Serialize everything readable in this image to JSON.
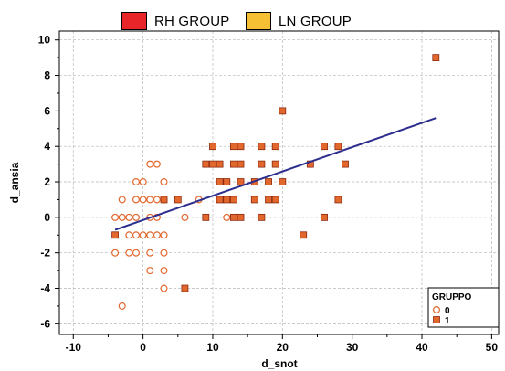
{
  "top_legend": {
    "items": [
      {
        "label": "RH GROUP",
        "color": "#e8262a"
      },
      {
        "label": "LN GROUP",
        "color": "#f5c033"
      }
    ]
  },
  "chart_data": {
    "type": "scatter",
    "title": "",
    "xlabel": "d_snot",
    "ylabel": "d_ansia",
    "xlim": [
      -12,
      51
    ],
    "ylim": [
      -6.6,
      10.5
    ],
    "xticks": [
      -10,
      0,
      10,
      20,
      30,
      40,
      50
    ],
    "yticks": [
      -6,
      -4,
      -2,
      0,
      2,
      4,
      6,
      8,
      10
    ],
    "grid": true,
    "legend": {
      "title": "GRUPPO",
      "placement": "bottom-right",
      "entries": [
        {
          "label": "0",
          "marker": "circle-open",
          "color": "#e2672d"
        },
        {
          "label": "1",
          "marker": "square-filled",
          "color": "#e2672d"
        }
      ]
    },
    "series": [
      {
        "name": "0",
        "marker": "circle-open",
        "color": "#e2672d",
        "points": [
          [
            -3,
            -5
          ],
          [
            -4,
            -2
          ],
          [
            -2,
            -2
          ],
          [
            -1,
            -2
          ],
          [
            1,
            -2
          ],
          [
            3,
            -2
          ],
          [
            1,
            -3
          ],
          [
            3,
            -3
          ],
          [
            3,
            -4
          ],
          [
            -4,
            0
          ],
          [
            -3,
            0
          ],
          [
            -2,
            0
          ],
          [
            -1,
            0
          ],
          [
            1,
            0
          ],
          [
            2,
            0
          ],
          [
            6,
            0
          ],
          [
            12,
            0
          ],
          [
            -2,
            -1
          ],
          [
            -1,
            -1
          ],
          [
            0,
            -1
          ],
          [
            1,
            -1
          ],
          [
            2,
            -1
          ],
          [
            3,
            -1
          ],
          [
            -3,
            1
          ],
          [
            -1,
            1
          ],
          [
            0,
            1
          ],
          [
            1,
            1
          ],
          [
            2,
            1
          ],
          [
            3,
            1
          ],
          [
            8,
            1
          ],
          [
            -1,
            2
          ],
          [
            0,
            2
          ],
          [
            3,
            2
          ],
          [
            1,
            3
          ],
          [
            2,
            3
          ]
        ]
      },
      {
        "name": "1",
        "marker": "square-filled",
        "color": "#e2672d",
        "points": [
          [
            42,
            9
          ],
          [
            20,
            6
          ],
          [
            10,
            4
          ],
          [
            13,
            4
          ],
          [
            14,
            4
          ],
          [
            17,
            4
          ],
          [
            19,
            4
          ],
          [
            26,
            4
          ],
          [
            28,
            4
          ],
          [
            9,
            3
          ],
          [
            10,
            3
          ],
          [
            11,
            3
          ],
          [
            13,
            3
          ],
          [
            14,
            3
          ],
          [
            17,
            3
          ],
          [
            19,
            3
          ],
          [
            24,
            3
          ],
          [
            29,
            3
          ],
          [
            11,
            2
          ],
          [
            12,
            2
          ],
          [
            14,
            2
          ],
          [
            16,
            2
          ],
          [
            18,
            2
          ],
          [
            20,
            2
          ],
          [
            3,
            1
          ],
          [
            5,
            1
          ],
          [
            11,
            1
          ],
          [
            12,
            1
          ],
          [
            13,
            1
          ],
          [
            16,
            1
          ],
          [
            18,
            1
          ],
          [
            19,
            1
          ],
          [
            28,
            1
          ],
          [
            9,
            0
          ],
          [
            13,
            0
          ],
          [
            14,
            0
          ],
          [
            17,
            0
          ],
          [
            26,
            0
          ],
          [
            -4,
            -1
          ],
          [
            23,
            -1
          ],
          [
            6,
            -4
          ]
        ]
      }
    ],
    "fit_line": {
      "from": [
        -4,
        -0.7
      ],
      "to": [
        42,
        5.6
      ],
      "color": "#2b2e8c"
    }
  }
}
